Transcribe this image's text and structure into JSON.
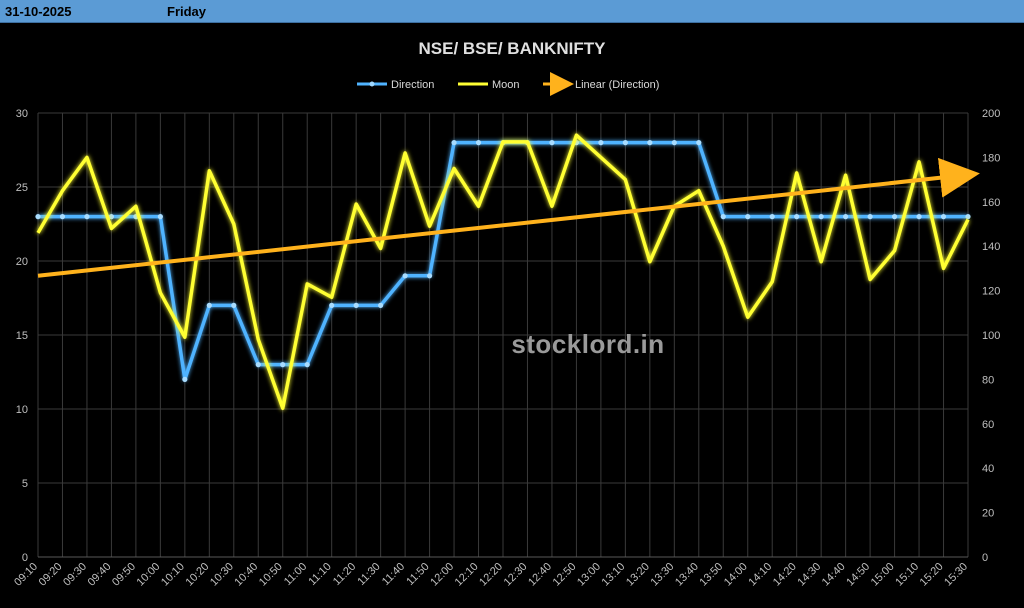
{
  "header": {
    "date": "31-10-2025",
    "day": "Friday"
  },
  "colors": {
    "header_bg": "#5b9bd5",
    "direction": "#4fb3ff",
    "moon": "#ffff33",
    "trend": "#ffb21c",
    "grid": "#3a3a3a"
  },
  "chart_data": {
    "type": "line",
    "title": "NSE/ BSE/ BANKNIFTY",
    "watermark": "stocklord.in",
    "legend": [
      "Direction",
      "Moon",
      "Linear (Direction)"
    ],
    "legend_position": "top",
    "grid": true,
    "categories": [
      "09:10",
      "09:20",
      "09:30",
      "09:40",
      "09:50",
      "10:00",
      "10:10",
      "10:20",
      "10:30",
      "10:40",
      "10:50",
      "11:00",
      "11:10",
      "11:20",
      "11:30",
      "11:40",
      "11:50",
      "12:00",
      "12:10",
      "12:20",
      "12:30",
      "12:40",
      "12:50",
      "13:00",
      "13:10",
      "13:20",
      "13:30",
      "13:40",
      "13:50",
      "14:00",
      "14:10",
      "14:20",
      "14:30",
      "14:40",
      "14:50",
      "15:00",
      "15:10",
      "15:20",
      "15:30"
    ],
    "y_left": {
      "min": 0,
      "max": 30,
      "ticks": [
        0,
        5,
        10,
        15,
        20,
        25,
        30
      ]
    },
    "y_right": {
      "min": 0,
      "max": 200,
      "ticks": [
        0,
        20,
        40,
        60,
        80,
        100,
        120,
        140,
        160,
        180,
        200
      ]
    },
    "series": [
      {
        "name": "Direction",
        "axis": "left",
        "values": [
          23,
          23,
          23,
          23,
          23,
          23,
          12,
          17,
          17,
          13,
          13,
          13,
          17,
          17,
          17,
          19,
          19,
          28,
          28,
          28,
          28,
          28,
          28,
          28,
          28,
          28,
          28,
          28,
          23,
          23,
          23,
          23,
          23,
          23,
          23,
          23,
          23,
          23,
          23
        ]
      },
      {
        "name": "Moon",
        "axis": "right",
        "values": [
          146,
          165,
          180,
          148,
          158,
          119,
          99,
          174,
          150,
          98,
          67,
          123,
          117,
          159,
          139,
          182,
          149,
          175,
          158,
          187,
          187,
          158,
          190,
          180,
          170,
          133,
          158,
          165,
          140,
          108,
          124,
          173,
          133,
          172,
          125,
          138,
          178,
          130,
          152
        ]
      },
      {
        "name": "Linear (Direction)",
        "axis": "left",
        "type": "trendline",
        "start": 19.0,
        "end": 25.8
      }
    ]
  }
}
